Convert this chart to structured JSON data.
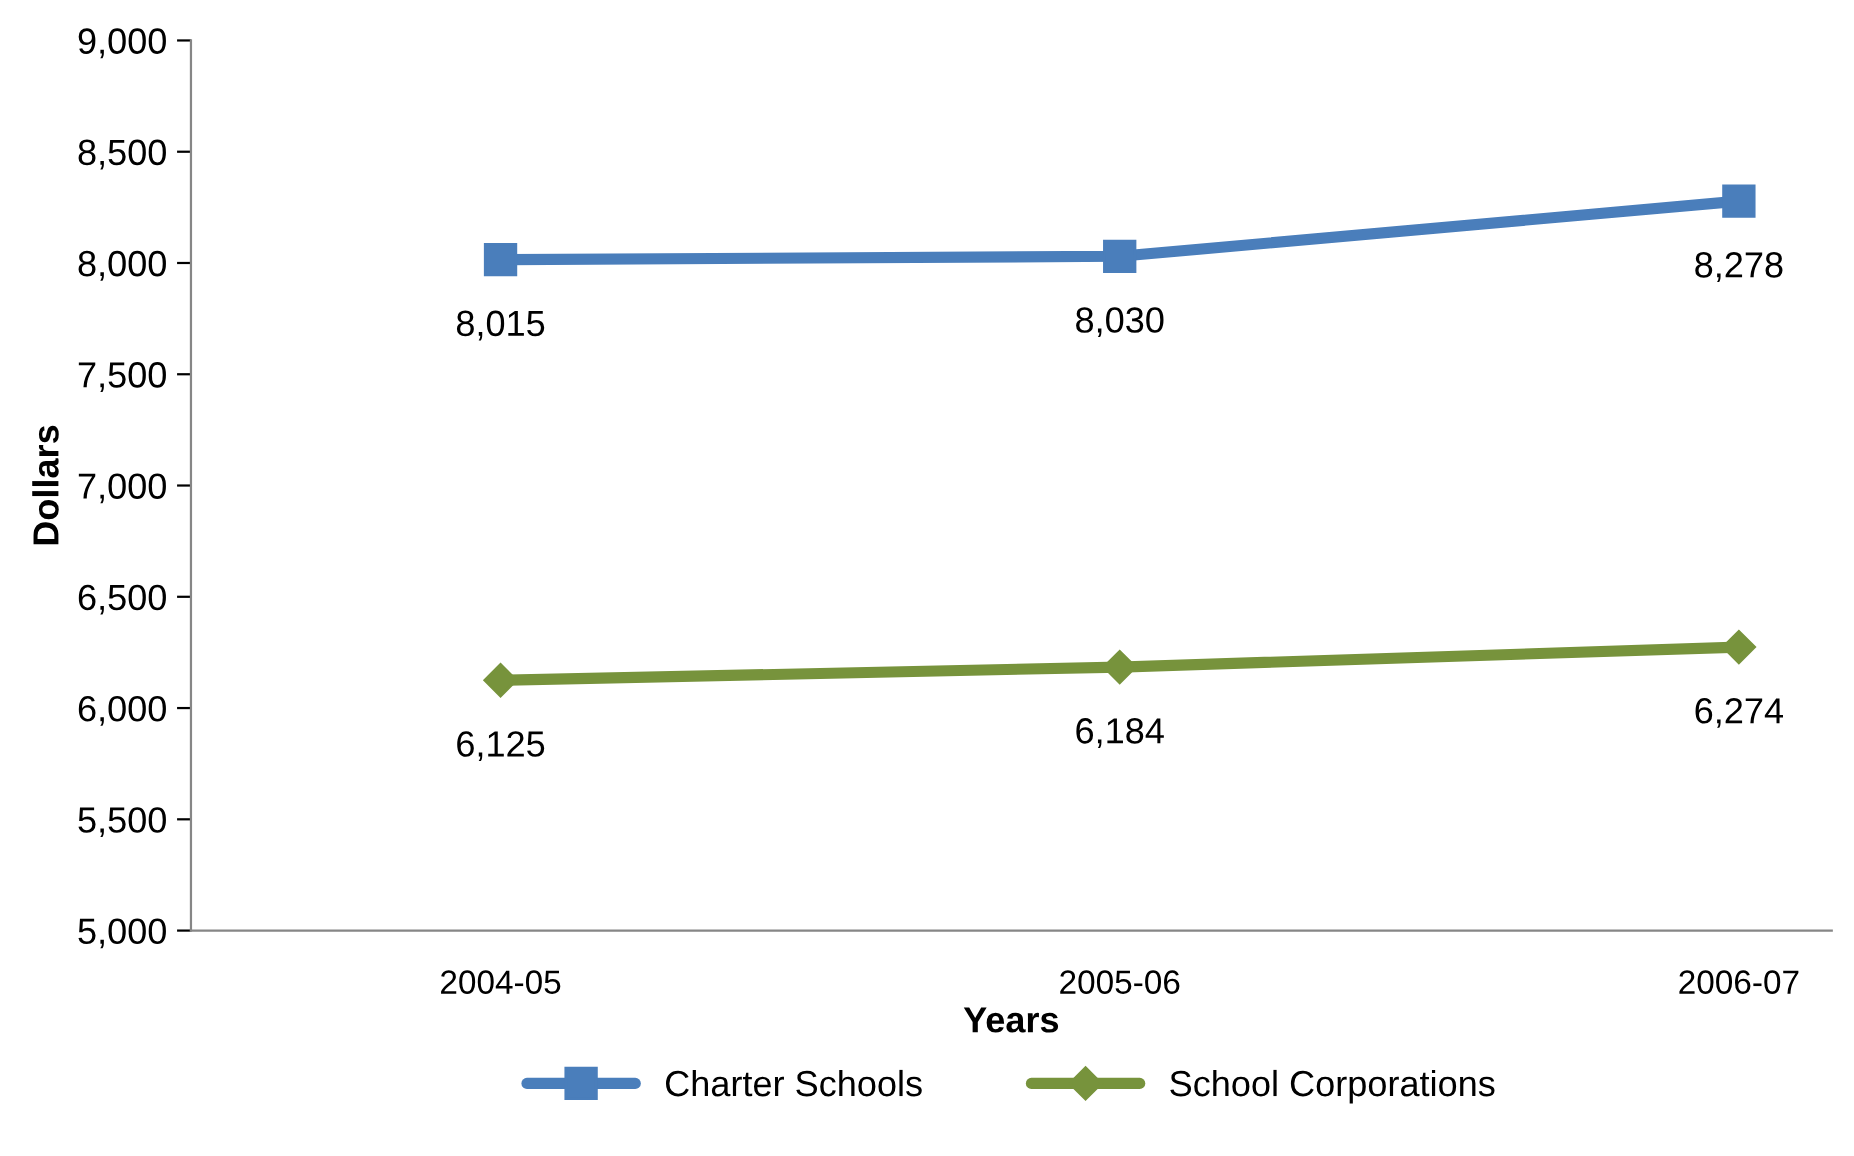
{
  "chart_data": {
    "type": "line",
    "xlabel": "Years",
    "ylabel": "Dollars",
    "categories": [
      "2004-05",
      "2005-06",
      "2006-07"
    ],
    "series": [
      {
        "name": "Charter Schools",
        "color": "#4a7ebb",
        "marker": "square",
        "values": [
          8015,
          8030,
          8278
        ],
        "value_labels": [
          "8,015",
          "8,030",
          "8,278"
        ]
      },
      {
        "name": "School Corporations",
        "color": "#77933c",
        "marker": "diamond",
        "values": [
          6125,
          6184,
          6274
        ],
        "value_labels": [
          "6,125",
          "6,184",
          "6,274"
        ]
      }
    ],
    "ylim": [
      5000,
      9000
    ],
    "yticks": [
      {
        "value": 5000,
        "label": "5,000"
      },
      {
        "value": 5500,
        "label": "5,500"
      },
      {
        "value": 6000,
        "label": "6,000"
      },
      {
        "value": 6500,
        "label": "6,500"
      },
      {
        "value": 7000,
        "label": "7,000"
      },
      {
        "value": 7500,
        "label": "7,500"
      },
      {
        "value": 8000,
        "label": "8,000"
      },
      {
        "value": 8500,
        "label": "8,500"
      },
      {
        "value": 9000,
        "label": "9,000"
      }
    ],
    "grid": false,
    "legend": "bottom"
  }
}
